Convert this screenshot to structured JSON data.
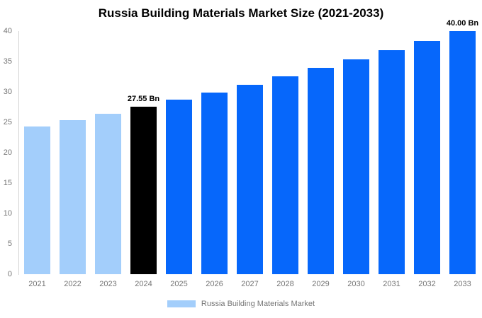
{
  "title": "Russia Building Materials Market Size (2021-2033)",
  "colors": {
    "historical_bar": "#A3CEFB",
    "highlight_bar": "#000000",
    "forecast_bar": "#0667FB",
    "axis_line": "#D3D3D3",
    "tick_label": "#757575",
    "title_text": "#000000",
    "annotation_text": "#000000",
    "background": "#FFFFFF"
  },
  "chart_data": {
    "type": "bar",
    "title": "Russia Building Materials Market Size (2021-2033)",
    "xlabel": "",
    "ylabel": "",
    "categories": [
      "2021",
      "2022",
      "2023",
      "2024",
      "2025",
      "2026",
      "2027",
      "2028",
      "2029",
      "2030",
      "2031",
      "2032",
      "2033"
    ],
    "values": [
      24.3,
      25.33,
      26.42,
      27.55,
      28.72,
      29.93,
      31.2,
      32.52,
      33.9,
      35.33,
      36.83,
      38.39,
      40.0
    ],
    "bar_colors": [
      "#A3CEFB",
      "#A3CEFB",
      "#A3CEFB",
      "#000000",
      "#0667FB",
      "#0667FB",
      "#0667FB",
      "#0667FB",
      "#0667FB",
      "#0667FB",
      "#0667FB",
      "#0667FB",
      "#0667FB"
    ],
    "ylim": [
      0,
      40
    ],
    "yticks": [
      0,
      5,
      10,
      15,
      20,
      25,
      30,
      35,
      40
    ],
    "grid": false,
    "annotations": [
      {
        "text": "27.55 Bn",
        "category": "2024"
      },
      {
        "text": "40.00 Bn",
        "category": "2033"
      }
    ],
    "legend": {
      "position": "bottom",
      "entries": [
        {
          "label": "Russia Building Materials Market",
          "color": "#A3CEFB"
        }
      ]
    }
  }
}
